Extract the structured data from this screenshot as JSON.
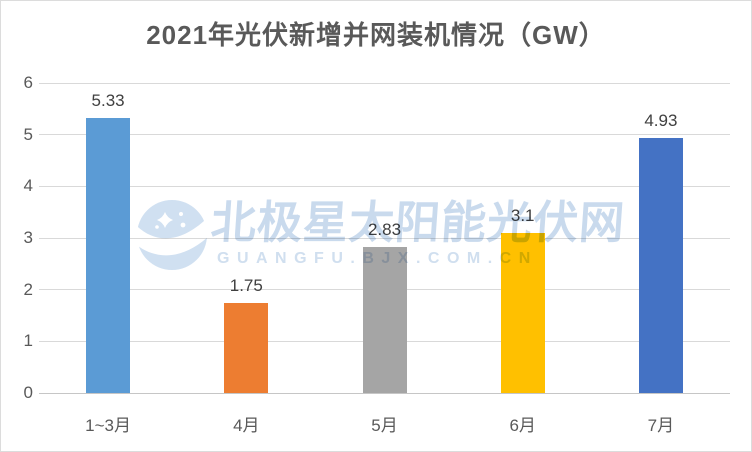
{
  "chart_data": {
    "type": "bar",
    "title": "2021年光伏新增并网装机情况（GW）",
    "categories": [
      "1~3月",
      "4月",
      "5月",
      "6月",
      "7月"
    ],
    "values": [
      5.33,
      1.75,
      2.83,
      3.1,
      4.93
    ],
    "value_labels": [
      "5.33",
      "1.75",
      "2.83",
      "3.1",
      "4.93"
    ],
    "bar_colors": [
      "#5B9BD5",
      "#ED7D31",
      "#A5A5A5",
      "#FFC000",
      "#4472C4"
    ],
    "xlabel": "",
    "ylabel": "",
    "ylim": [
      0,
      6
    ],
    "yticks": [
      0,
      1,
      2,
      3,
      4,
      5,
      6
    ],
    "grid": "horizontal",
    "legend": "none"
  },
  "watermark": {
    "line1": "北极星太阳能光伏网",
    "line2": "GUANGFU.BJX.COM.CN",
    "color": "#9CBBDF"
  },
  "colors": {
    "background": "#FFFFFF",
    "border": "#DCDCDC",
    "gridline": "#D9D9D9",
    "axis_line": "#C6C6C6",
    "title_text": "#595959",
    "tick_text": "#595959",
    "value_text": "#404040"
  }
}
